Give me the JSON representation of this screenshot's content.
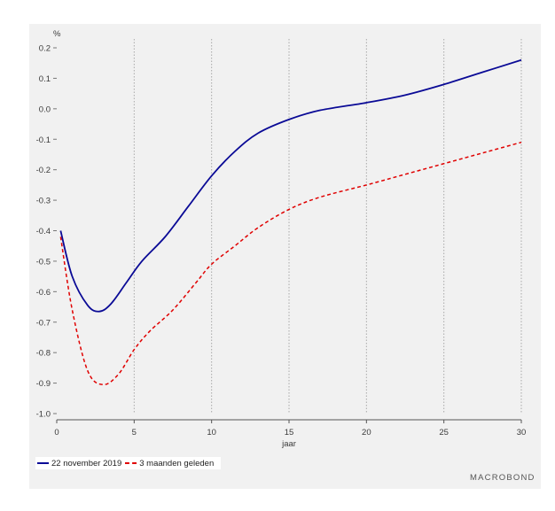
{
  "chart_data": {
    "type": "line",
    "unit_label": "%",
    "xlabel": "jaar",
    "ylabel": "",
    "xlim": [
      0,
      30
    ],
    "ylim": [
      -1.0,
      0.2
    ],
    "xticks": [
      0,
      5,
      10,
      15,
      20,
      25,
      30
    ],
    "yticks": [
      0.2,
      0.1,
      0.0,
      -0.1,
      -0.2,
      -0.3,
      -0.4,
      -0.5,
      -0.6,
      -0.7,
      -0.8,
      -0.9,
      -1.0
    ],
    "ytick_labels": [
      "0.2",
      "0.1",
      "0.0",
      "-0.1",
      "-0.2",
      "-0.3",
      "-0.4",
      "-0.5",
      "-0.6",
      "-0.7",
      "-0.8",
      "-0.9",
      "-1.0"
    ],
    "xtick_labels": [
      "0",
      "5",
      "10",
      "15",
      "20",
      "25",
      "30"
    ],
    "grid": "vertical dotted",
    "legend_position": "bottom-left",
    "series": [
      {
        "name": "22 november 2019",
        "color": "#0a0a96",
        "style": "solid",
        "x": [
          0.25,
          1,
          2,
          2.75,
          3.5,
          4.5,
          5.5,
          7,
          8.5,
          10,
          11.5,
          13,
          15,
          17,
          20,
          22.5,
          25,
          27.5,
          30
        ],
        "y": [
          -0.4,
          -0.55,
          -0.645,
          -0.665,
          -0.64,
          -0.57,
          -0.5,
          -0.42,
          -0.32,
          -0.22,
          -0.14,
          -0.08,
          -0.035,
          -0.005,
          0.02,
          0.045,
          0.08,
          0.12,
          0.16
        ]
      },
      {
        "name": "3 maanden geleden",
        "color": "#e00000",
        "style": "dashed",
        "x": [
          0.25,
          1,
          2,
          3,
          4,
          5,
          6,
          7.5,
          9,
          10,
          11.5,
          13,
          15,
          17,
          20,
          22.5,
          25,
          27.5,
          30
        ],
        "y": [
          -0.42,
          -0.66,
          -0.86,
          -0.905,
          -0.87,
          -0.79,
          -0.73,
          -0.66,
          -0.57,
          -0.51,
          -0.45,
          -0.39,
          -0.33,
          -0.29,
          -0.25,
          -0.215,
          -0.18,
          -0.145,
          -0.11
        ]
      }
    ]
  },
  "watermark": "MACROBOND"
}
